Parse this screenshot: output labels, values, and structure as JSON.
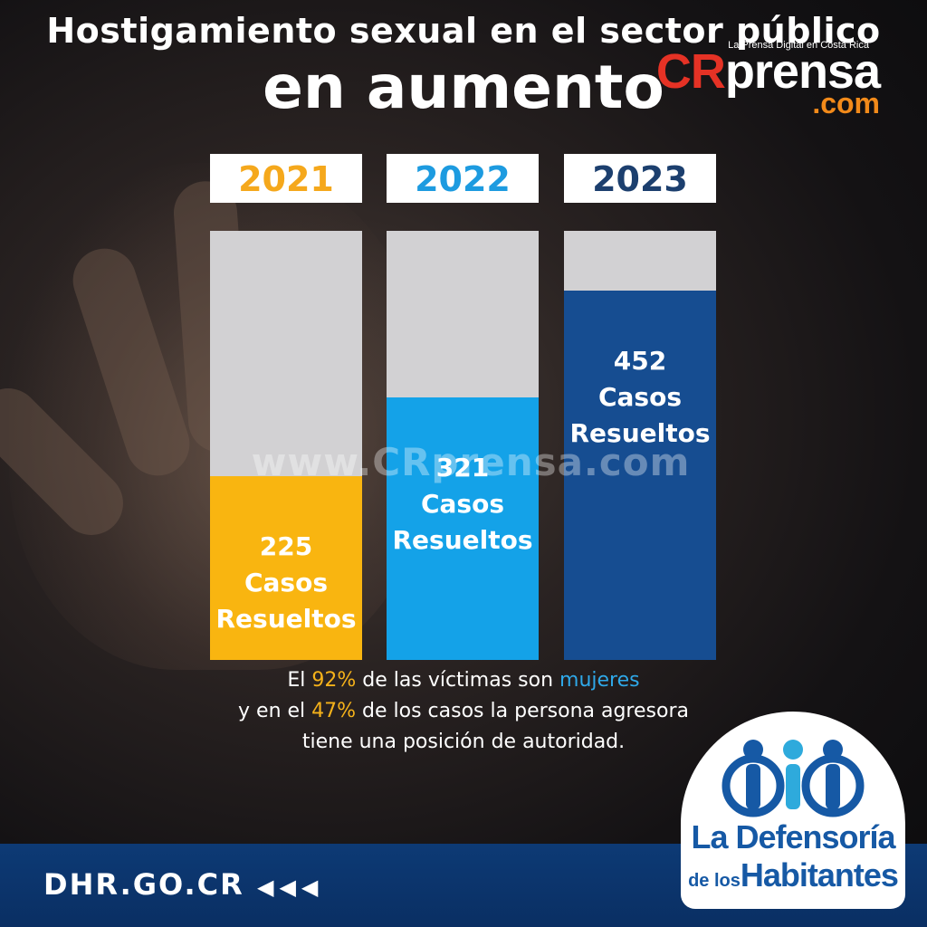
{
  "header": {
    "title_line1": "Hostigamiento sexual en el sector público",
    "title_line2": "en aumento"
  },
  "brand": {
    "tagline": "La Prensa Digital en Costa Rica",
    "name_cr": "CR",
    "name_rest": "prensa",
    "domain": ".com",
    "watermark": "www.CRprensa.com"
  },
  "chart_data": {
    "type": "bar",
    "categories": [
      "2021",
      "2022",
      "2023"
    ],
    "values": [
      225,
      321,
      452
    ],
    "value_labels": [
      [
        "225",
        "Casos",
        "Resueltos"
      ],
      [
        "321",
        "Casos",
        "Resueltos"
      ],
      [
        "452",
        "Casos",
        "Resueltos"
      ]
    ],
    "ylim": [
      0,
      525
    ],
    "colors": [
      "#f9b510",
      "#14a2e8",
      "#164d91"
    ],
    "year_colors": [
      "#f5a81c",
      "#1d9be0",
      "#1c3f6e"
    ],
    "title": "",
    "xlabel": "",
    "ylabel": ""
  },
  "stats": {
    "line1_a": "El ",
    "line1_pct": "92%",
    "line1_b": " de las víctimas son ",
    "line1_hl": "mujeres",
    "line2_a": "y en el ",
    "line2_pct": "47%",
    "line2_b": " de los casos la persona agresora",
    "line3": "tiene una posición de autoridad."
  },
  "footer": {
    "url": "DHR.GO.CR",
    "arrows": "◀◀◀"
  },
  "logo": {
    "line1": "La Defensoría",
    "line2_small": "de los",
    "line2_big": "Habitantes",
    "color": "#1659a5"
  }
}
